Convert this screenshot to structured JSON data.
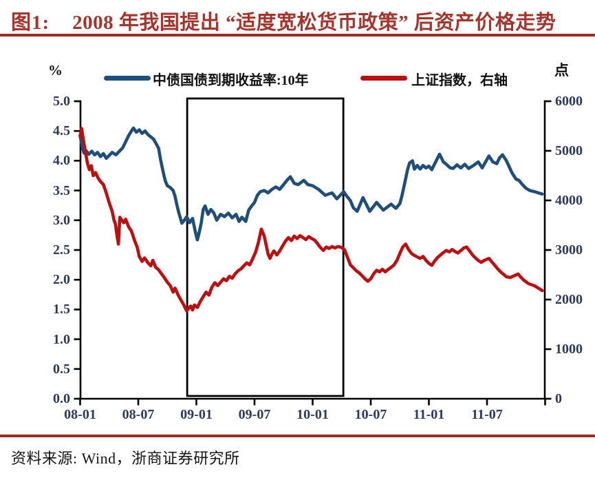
{
  "figure": {
    "label": "图1:",
    "title": "2008 年我国提出 “适度宽松货币政策” 后资产价格走势",
    "source_note": "资料来源: Wind，浙商证券研究所"
  },
  "legend": {
    "left_unit": "%",
    "right_unit": "点",
    "series1_label": "中债国债到期收益率:10年",
    "series2_label": "上证指数，右轴"
  },
  "colors": {
    "title_red": "#A6342C",
    "rule_red": "#9E2A22",
    "bond_blue": "#1F4E7C",
    "index_red": "#C00D10",
    "axis_black": "#000000",
    "tick_label": "#2E3A5C"
  },
  "chart_data": {
    "type": "line",
    "title": "2008 年我国提出 “适度宽松货币政策” 后资产价格走势",
    "x_axis": {
      "unit": "year-month",
      "start": "2008-01",
      "end": "2011-12",
      "tick_labels": [
        "08-01",
        "08-07",
        "09-01",
        "09-07",
        "10-01",
        "10-07",
        "11-01",
        "11-07"
      ],
      "tick_months": [
        0,
        6,
        12,
        18,
        24,
        30,
        36,
        42
      ],
      "grid": false
    },
    "left_axis": {
      "unit": "%",
      "min": 0.0,
      "max": 5.0,
      "tick_labels": [
        "5.0",
        "4.5",
        "4.0",
        "3.5",
        "3.0",
        "2.5",
        "2.0",
        "1.5",
        "1.0",
        "0.5",
        "0.0"
      ]
    },
    "right_axis": {
      "unit": "点",
      "min": 0,
      "max": 6000,
      "tick_labels": [
        "6000",
        "5000",
        "4000",
        "3000",
        "2000",
        "1000",
        "0"
      ]
    },
    "highlight_box": {
      "start_month": 11.05,
      "end_month": 27.17,
      "meaning": "boxed window from late 2008 to spring 2010"
    },
    "legend_position": "top",
    "series": [
      {
        "name": "中债国债到期收益率:10年",
        "axis": "left",
        "color": "#1F4E7C",
        "points": [
          [
            0,
            4.42
          ],
          [
            0.2,
            4.25
          ],
          [
            0.4,
            4.13
          ],
          [
            0.6,
            4.17
          ],
          [
            0.9,
            4.11
          ],
          [
            1.2,
            4.16
          ],
          [
            1.5,
            4.1
          ],
          [
            1.8,
            4.14
          ],
          [
            2.1,
            4.07
          ],
          [
            2.4,
            4.12
          ],
          [
            2.7,
            4.04
          ],
          [
            3.0,
            4.09
          ],
          [
            3.3,
            4.14
          ],
          [
            3.7,
            4.1
          ],
          [
            4.0,
            4.15
          ],
          [
            4.4,
            4.22
          ],
          [
            4.7,
            4.32
          ],
          [
            5.0,
            4.42
          ],
          [
            5.3,
            4.5
          ],
          [
            5.5,
            4.55
          ],
          [
            5.8,
            4.48
          ],
          [
            6.1,
            4.52
          ],
          [
            6.4,
            4.46
          ],
          [
            6.7,
            4.5
          ],
          [
            7.0,
            4.44
          ],
          [
            7.3,
            4.4
          ],
          [
            7.6,
            4.36
          ],
          [
            8.1,
            4.21
          ],
          [
            8.3,
            4.02
          ],
          [
            8.6,
            3.79
          ],
          [
            8.8,
            3.66
          ],
          [
            9.0,
            3.58
          ],
          [
            9.3,
            3.55
          ],
          [
            9.6,
            3.5
          ],
          [
            9.8,
            3.4
          ],
          [
            10.0,
            3.25
          ],
          [
            10.2,
            3.12
          ],
          [
            10.5,
            2.95
          ],
          [
            10.8,
            3.01
          ],
          [
            11.0,
            3.06
          ],
          [
            11.3,
            2.96
          ],
          [
            11.6,
            3.03
          ],
          [
            11.9,
            2.8
          ],
          [
            12.1,
            2.67
          ],
          [
            12.3,
            2.8
          ],
          [
            12.5,
            2.95
          ],
          [
            12.7,
            3.18
          ],
          [
            12.9,
            3.24
          ],
          [
            13.2,
            3.1
          ],
          [
            13.5,
            3.18
          ],
          [
            13.8,
            3.12
          ],
          [
            14.1,
            3.0
          ],
          [
            14.5,
            3.1
          ],
          [
            14.9,
            3.06
          ],
          [
            15.3,
            3.12
          ],
          [
            15.7,
            3.04
          ],
          [
            16.1,
            3.1
          ],
          [
            16.4,
            2.98
          ],
          [
            16.7,
            3.05
          ],
          [
            17.1,
            2.98
          ],
          [
            17.4,
            3.17
          ],
          [
            17.7,
            3.24
          ],
          [
            18.0,
            3.3
          ],
          [
            18.3,
            3.42
          ],
          [
            18.6,
            3.48
          ],
          [
            19.0,
            3.5
          ],
          [
            19.4,
            3.46
          ],
          [
            19.8,
            3.52
          ],
          [
            20.2,
            3.56
          ],
          [
            20.6,
            3.52
          ],
          [
            21.0,
            3.6
          ],
          [
            21.4,
            3.68
          ],
          [
            21.7,
            3.73
          ],
          [
            22.1,
            3.62
          ],
          [
            22.5,
            3.6
          ],
          [
            23.1,
            3.67
          ],
          [
            23.5,
            3.6
          ],
          [
            24.0,
            3.58
          ],
          [
            24.6,
            3.52
          ],
          [
            25.3,
            3.42
          ],
          [
            26.0,
            3.46
          ],
          [
            26.5,
            3.36
          ],
          [
            27.2,
            3.48
          ],
          [
            27.5,
            3.41
          ],
          [
            27.9,
            3.33
          ],
          [
            28.2,
            3.21
          ],
          [
            28.6,
            3.15
          ],
          [
            29.2,
            3.38
          ],
          [
            29.9,
            3.15
          ],
          [
            30.6,
            3.3
          ],
          [
            31.3,
            3.17
          ],
          [
            32.1,
            3.27
          ],
          [
            32.6,
            3.2
          ],
          [
            33.0,
            3.28
          ],
          [
            33.2,
            3.4
          ],
          [
            33.5,
            3.62
          ],
          [
            33.8,
            3.85
          ],
          [
            34.0,
            3.96
          ],
          [
            34.3,
            4.0
          ],
          [
            34.5,
            3.86
          ],
          [
            34.8,
            3.92
          ],
          [
            35.1,
            3.86
          ],
          [
            35.4,
            3.92
          ],
          [
            35.7,
            3.88
          ],
          [
            36.0,
            3.91
          ],
          [
            36.3,
            3.85
          ],
          [
            36.6,
            3.95
          ],
          [
            37.1,
            4.11
          ],
          [
            37.5,
            3.98
          ],
          [
            37.8,
            3.94
          ],
          [
            38.2,
            3.88
          ],
          [
            38.5,
            3.87
          ],
          [
            38.9,
            3.93
          ],
          [
            39.3,
            3.88
          ],
          [
            39.7,
            3.94
          ],
          [
            40.1,
            3.87
          ],
          [
            40.6,
            3.92
          ],
          [
            41.1,
            3.98
          ],
          [
            41.5,
            3.88
          ],
          [
            42.2,
            4.08
          ],
          [
            42.6,
            3.98
          ],
          [
            43.0,
            3.95
          ],
          [
            43.3,
            4.05
          ],
          [
            43.6,
            4.1
          ],
          [
            44.0,
            4.0
          ],
          [
            44.6,
            3.79
          ],
          [
            45.0,
            3.69
          ],
          [
            45.3,
            3.67
          ],
          [
            45.6,
            3.61
          ],
          [
            46.0,
            3.54
          ],
          [
            46.4,
            3.5
          ],
          [
            46.9,
            3.48
          ],
          [
            47.7,
            3.44
          ]
        ]
      },
      {
        "name": "上证指数",
        "axis": "right",
        "color": "#C00D10",
        "points": [
          [
            0,
            5300
          ],
          [
            0.15,
            5450
          ],
          [
            0.35,
            5200
          ],
          [
            0.55,
            4980
          ],
          [
            0.75,
            4750
          ],
          [
            0.95,
            4620
          ],
          [
            1.15,
            4700
          ],
          [
            1.35,
            4500
          ],
          [
            1.6,
            4560
          ],
          [
            1.85,
            4450
          ],
          [
            2.1,
            4380
          ],
          [
            2.4,
            4320
          ],
          [
            2.7,
            4150
          ],
          [
            3.0,
            3950
          ],
          [
            3.3,
            3780
          ],
          [
            3.5,
            3600
          ],
          [
            3.65,
            3520
          ],
          [
            3.8,
            3300
          ],
          [
            3.95,
            3120
          ],
          [
            4.1,
            3660
          ],
          [
            4.3,
            3600
          ],
          [
            4.5,
            3550
          ],
          [
            4.7,
            3620
          ],
          [
            5.0,
            3470
          ],
          [
            5.3,
            3380
          ],
          [
            5.6,
            3200
          ],
          [
            5.9,
            3050
          ],
          [
            6.1,
            2870
          ],
          [
            6.4,
            2770
          ],
          [
            6.65,
            2840
          ],
          [
            7.0,
            2740
          ],
          [
            7.3,
            2680
          ],
          [
            7.5,
            2790
          ],
          [
            7.8,
            2650
          ],
          [
            8.1,
            2600
          ],
          [
            8.4,
            2520
          ],
          [
            8.7,
            2440
          ],
          [
            9.0,
            2350
          ],
          [
            9.3,
            2280
          ],
          [
            9.6,
            2150
          ],
          [
            9.8,
            2230
          ],
          [
            10.1,
            2100
          ],
          [
            10.4,
            1990
          ],
          [
            10.7,
            1890
          ],
          [
            11.0,
            1770
          ],
          [
            11.2,
            1820
          ],
          [
            11.4,
            1870
          ],
          [
            11.6,
            1790
          ],
          [
            11.8,
            1890
          ],
          [
            12.1,
            1840
          ],
          [
            12.4,
            1960
          ],
          [
            12.7,
            2060
          ],
          [
            13.0,
            2150
          ],
          [
            13.3,
            2090
          ],
          [
            13.6,
            2250
          ],
          [
            13.9,
            2340
          ],
          [
            14.2,
            2280
          ],
          [
            14.5,
            2350
          ],
          [
            14.8,
            2420
          ],
          [
            15.1,
            2380
          ],
          [
            15.4,
            2470
          ],
          [
            15.7,
            2430
          ],
          [
            16.0,
            2520
          ],
          [
            16.3,
            2580
          ],
          [
            16.6,
            2620
          ],
          [
            16.9,
            2680
          ],
          [
            17.2,
            2740
          ],
          [
            17.5,
            2700
          ],
          [
            17.8,
            2820
          ],
          [
            18.1,
            2950
          ],
          [
            18.4,
            3150
          ],
          [
            18.7,
            3420
          ],
          [
            19.0,
            3280
          ],
          [
            19.2,
            3100
          ],
          [
            19.4,
            2920
          ],
          [
            19.6,
            2830
          ],
          [
            19.8,
            2920
          ],
          [
            20.0,
            2980
          ],
          [
            20.3,
            2900
          ],
          [
            20.6,
            2980
          ],
          [
            20.9,
            3080
          ],
          [
            21.2,
            3180
          ],
          [
            21.5,
            3250
          ],
          [
            21.8,
            3190
          ],
          [
            22.1,
            3280
          ],
          [
            22.4,
            3230
          ],
          [
            22.7,
            3290
          ],
          [
            23.0,
            3250
          ],
          [
            23.3,
            3210
          ],
          [
            23.6,
            3270
          ],
          [
            23.9,
            3230
          ],
          [
            24.2,
            3200
          ],
          [
            24.5,
            3130
          ],
          [
            24.8,
            3050
          ],
          [
            25.1,
            2990
          ],
          [
            25.4,
            3060
          ],
          [
            25.7,
            3030
          ],
          [
            26.0,
            3070
          ],
          [
            26.3,
            3040
          ],
          [
            26.6,
            3070
          ],
          [
            27.0,
            3050
          ],
          [
            27.3,
            3000
          ],
          [
            27.6,
            2850
          ],
          [
            27.9,
            2700
          ],
          [
            28.2,
            2640
          ],
          [
            28.5,
            2580
          ],
          [
            28.8,
            2540
          ],
          [
            29.1,
            2480
          ],
          [
            29.4,
            2420
          ],
          [
            29.7,
            2370
          ],
          [
            30.0,
            2420
          ],
          [
            30.3,
            2520
          ],
          [
            30.6,
            2590
          ],
          [
            30.9,
            2560
          ],
          [
            31.2,
            2610
          ],
          [
            31.5,
            2560
          ],
          [
            31.8,
            2610
          ],
          [
            32.1,
            2650
          ],
          [
            32.4,
            2700
          ],
          [
            32.7,
            2790
          ],
          [
            33.0,
            2930
          ],
          [
            33.3,
            3060
          ],
          [
            33.6,
            3120
          ],
          [
            33.9,
            3010
          ],
          [
            34.2,
            2930
          ],
          [
            34.5,
            2890
          ],
          [
            34.8,
            2860
          ],
          [
            35.1,
            2830
          ],
          [
            35.4,
            2870
          ],
          [
            35.7,
            2790
          ],
          [
            36.0,
            2730
          ],
          [
            36.3,
            2690
          ],
          [
            36.6,
            2780
          ],
          [
            36.9,
            2850
          ],
          [
            37.2,
            2900
          ],
          [
            37.5,
            2950
          ],
          [
            37.8,
            2990
          ],
          [
            38.1,
            2960
          ],
          [
            38.4,
            3010
          ],
          [
            38.7,
            2970
          ],
          [
            39.0,
            2940
          ],
          [
            39.3,
            2990
          ],
          [
            39.6,
            3040
          ],
          [
            39.9,
            3060
          ],
          [
            40.2,
            2980
          ],
          [
            40.5,
            2900
          ],
          [
            40.8,
            2840
          ],
          [
            41.1,
            2790
          ],
          [
            41.4,
            2750
          ],
          [
            41.7,
            2790
          ],
          [
            42.2,
            2830
          ],
          [
            42.5,
            2760
          ],
          [
            42.8,
            2690
          ],
          [
            43.1,
            2620
          ],
          [
            43.4,
            2560
          ],
          [
            43.7,
            2510
          ],
          [
            44.0,
            2460
          ],
          [
            44.4,
            2445
          ],
          [
            44.8,
            2480
          ],
          [
            45.2,
            2515
          ],
          [
            45.5,
            2450
          ],
          [
            45.8,
            2390
          ],
          [
            46.3,
            2320
          ],
          [
            46.9,
            2278
          ],
          [
            47.3,
            2230
          ],
          [
            47.7,
            2180
          ]
        ]
      }
    ]
  }
}
